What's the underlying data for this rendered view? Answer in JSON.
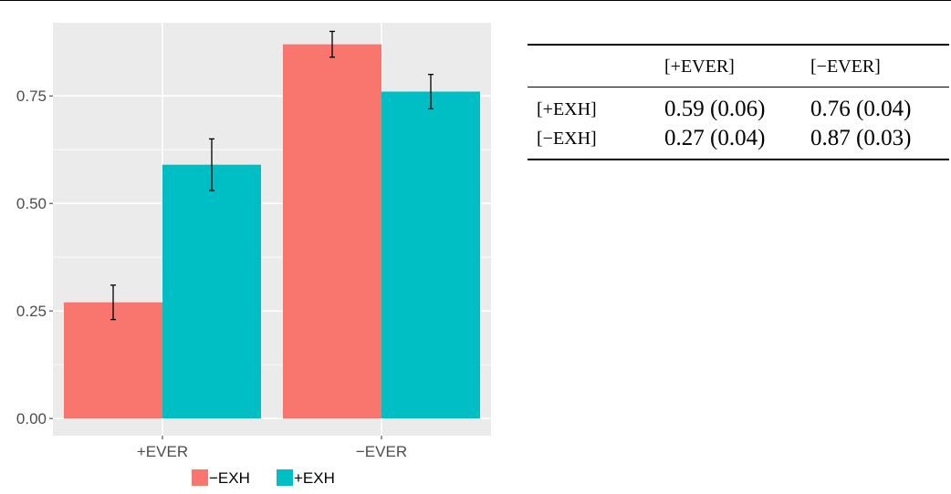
{
  "chart_data": {
    "type": "bar",
    "categories": [
      "+EVER",
      "−EVER"
    ],
    "series": [
      {
        "name": "−EXH",
        "color": "#f8766d",
        "values": [
          0.27,
          0.87
        ],
        "error": [
          0.04,
          0.03
        ]
      },
      {
        "name": "+EXH",
        "color": "#00bfc4",
        "values": [
          0.59,
          0.76
        ],
        "error": [
          0.06,
          0.04
        ]
      }
    ],
    "yticks": [
      0.0,
      0.25,
      0.5,
      0.75
    ],
    "ytick_labels": [
      "0.00",
      "0.25",
      "0.50",
      "0.75"
    ],
    "ylim": [
      -0.04,
      0.92
    ],
    "grid": true,
    "legend_position": "bottom",
    "title": "",
    "xlabel": "",
    "ylabel": ""
  },
  "table": {
    "headers": [
      "",
      "[+EVER]",
      "[−EVER]"
    ],
    "rows": [
      [
        "[+EXH]",
        "0.59 (0.06)",
        "0.76 (0.04)"
      ],
      [
        "[−EXH]",
        "0.27 (0.04)",
        "0.87 (0.03)"
      ]
    ]
  }
}
